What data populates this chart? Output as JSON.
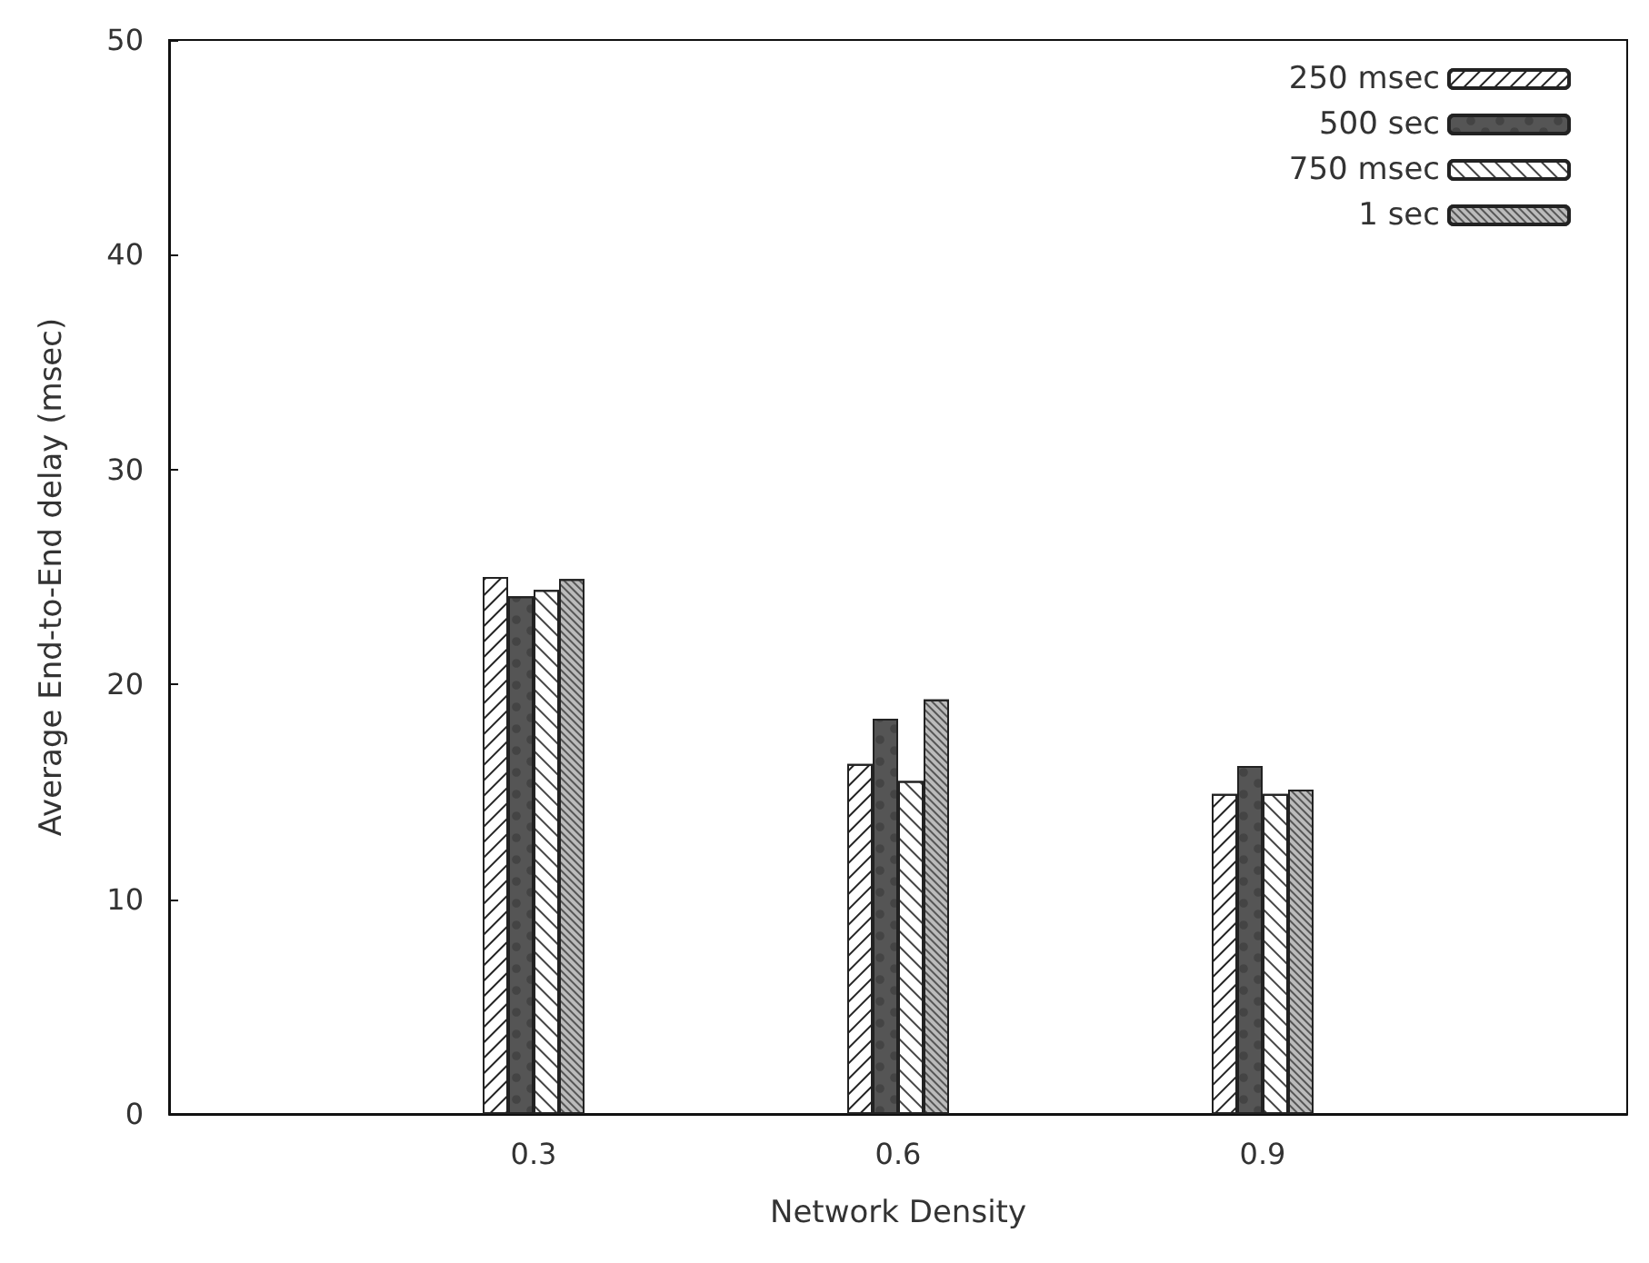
{
  "chart_data": {
    "type": "bar",
    "xlabel": "Network Density",
    "ylabel": "Average End-to-End delay (msec)",
    "x": [
      0.3,
      0.6,
      0.9
    ],
    "xlim": [
      0,
      1.2
    ],
    "xticks": [
      0.3,
      0.6,
      0.9
    ],
    "ylim": [
      0,
      50
    ],
    "yticks": [
      0,
      10,
      20,
      30,
      40,
      50
    ],
    "legend": "top right",
    "grid": false,
    "series": [
      {
        "name": "250 msec",
        "color": "#ffffff",
        "values": [
          25.0,
          16.3,
          14.9
        ]
      },
      {
        "name": "500 sec",
        "color": "#555555",
        "values": [
          24.1,
          18.4,
          16.2
        ]
      },
      {
        "name": "750 msec",
        "color": "#ffffff",
        "values": [
          24.4,
          15.5,
          14.9
        ]
      },
      {
        "name": "1 sec",
        "color": "#bbbbbb",
        "values": [
          24.9,
          19.3,
          15.1
        ]
      }
    ]
  }
}
